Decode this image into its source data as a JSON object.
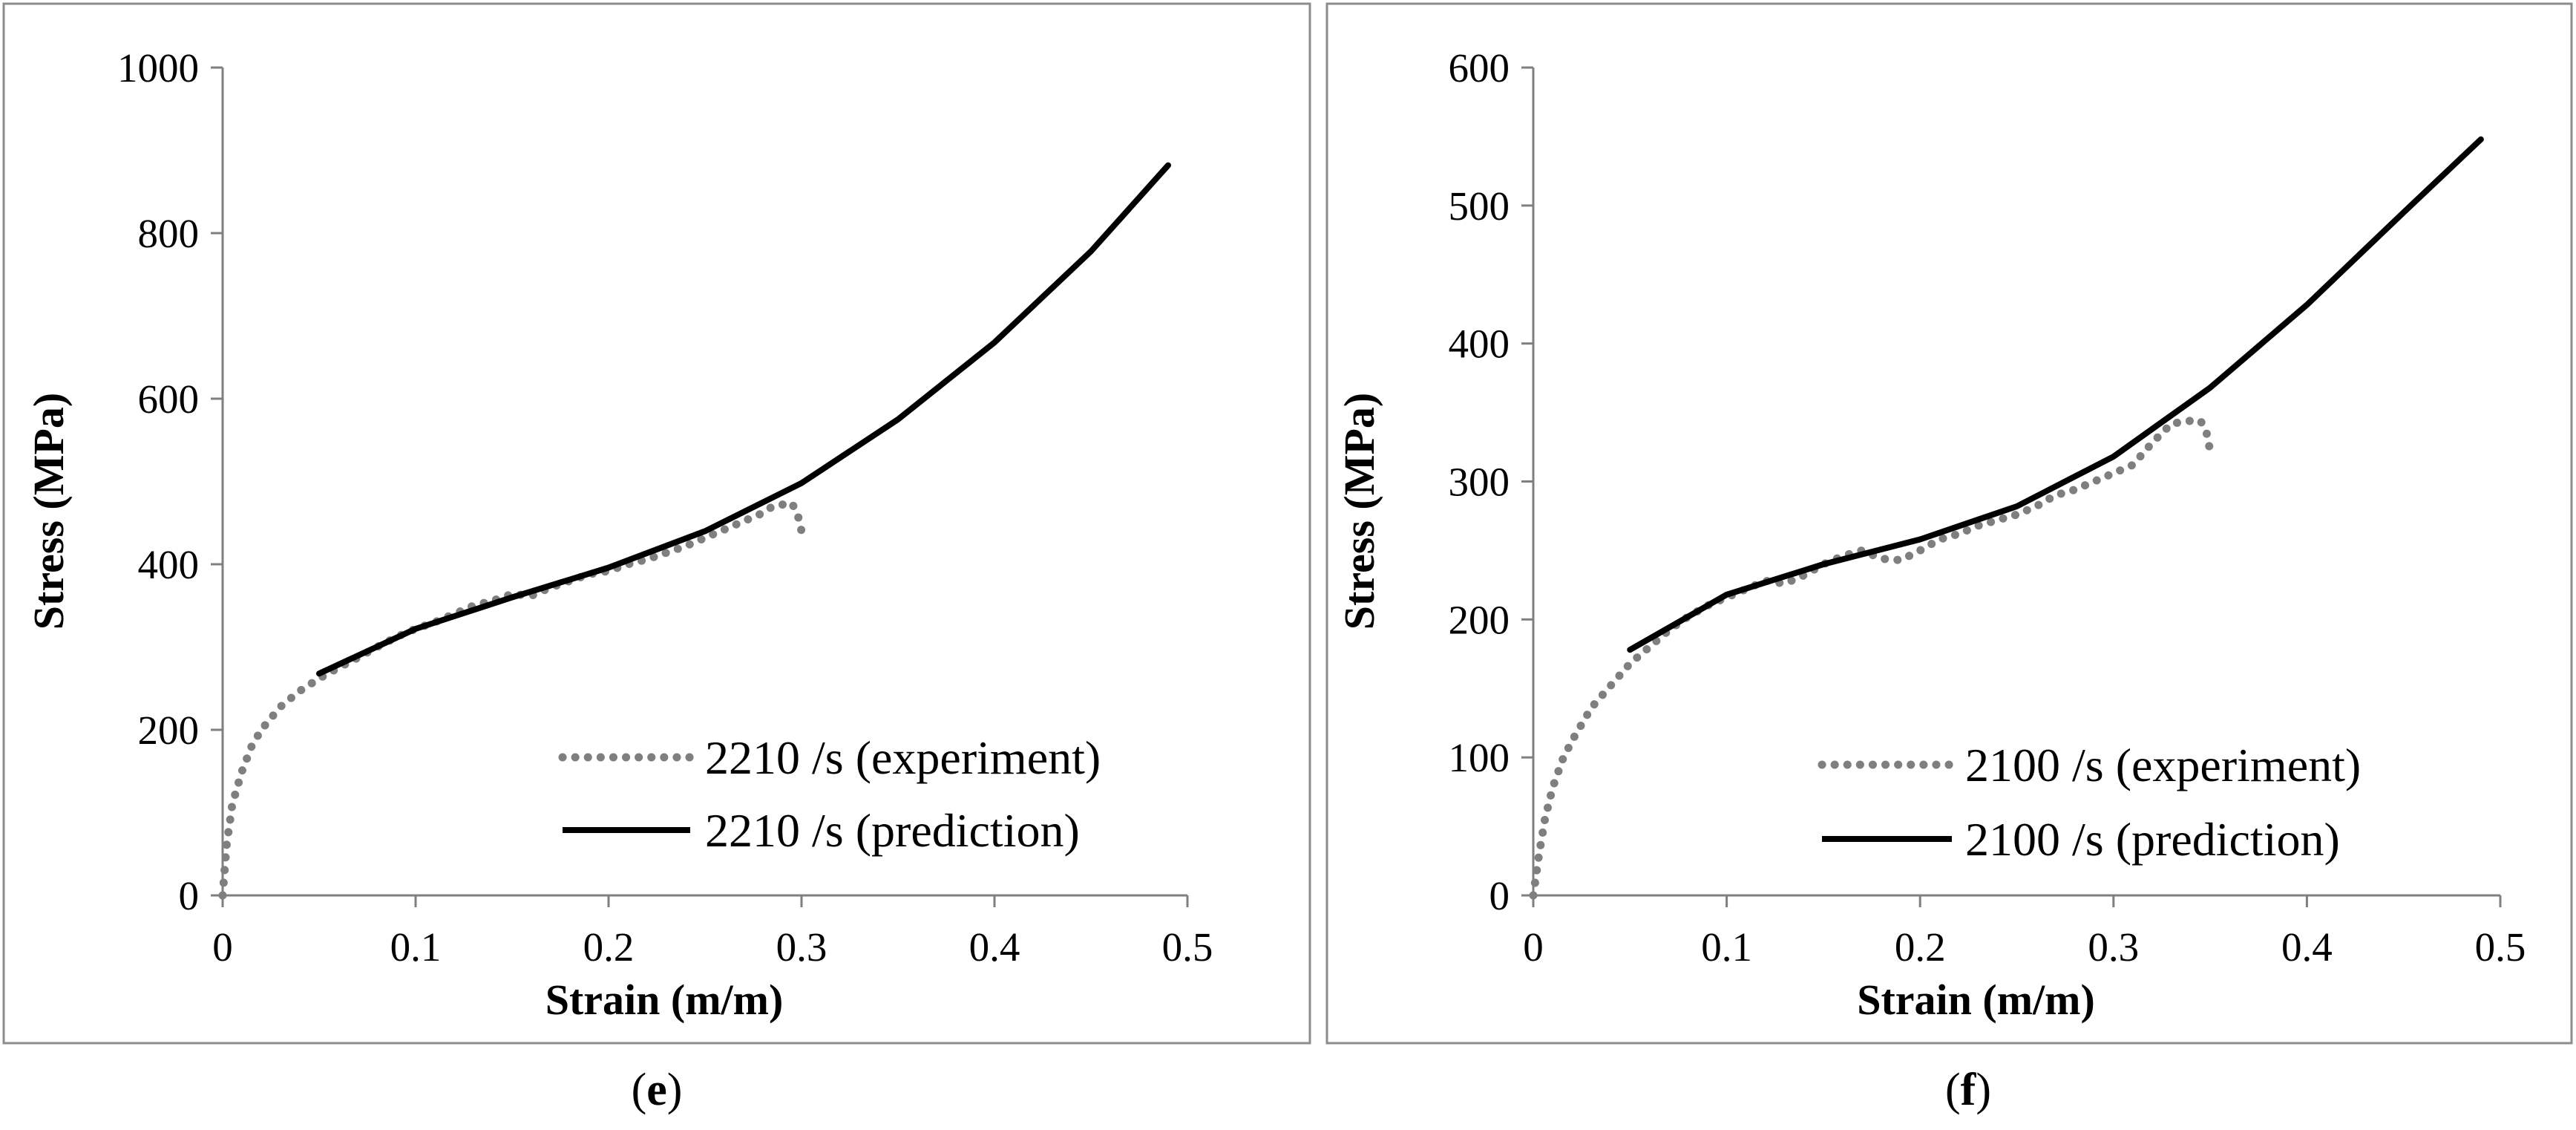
{
  "chart_data": [
    {
      "type": "line",
      "panel_label": "e",
      "xlabel": "Strain (m/m)",
      "ylabel": "Stress (MPa)",
      "xlim": [
        0,
        0.5
      ],
      "ylim": [
        0,
        1000
      ],
      "xticks": [
        "0",
        "0.1",
        "0.2",
        "0.3",
        "0.4",
        "0.5"
      ],
      "yticks": [
        "0",
        "200",
        "400",
        "600",
        "800",
        "1000"
      ],
      "grid": false,
      "legend_position": "bottom-right",
      "series": [
        {
          "name": "2210 /s (experiment)",
          "style": "dotted",
          "color": "#7f7f7f",
          "x": [
            0,
            0.002,
            0.005,
            0.01,
            0.015,
            0.02,
            0.03,
            0.04,
            0.05,
            0.06,
            0.07,
            0.08,
            0.09,
            0.1,
            0.11,
            0.12,
            0.13,
            0.14,
            0.15,
            0.16,
            0.17,
            0.18,
            0.19,
            0.2,
            0.21,
            0.22,
            0.23,
            0.24,
            0.25,
            0.26,
            0.27,
            0.28,
            0.285,
            0.29,
            0.295,
            0.298,
            0.3
          ],
          "y": [
            0,
            60,
            110,
            150,
            180,
            200,
            228,
            247,
            262,
            275,
            287,
            300,
            312,
            322,
            330,
            340,
            350,
            356,
            364,
            362,
            372,
            380,
            388,
            392,
            400,
            406,
            414,
            422,
            432,
            442,
            452,
            462,
            470,
            472,
            474,
            460,
            440
          ]
        },
        {
          "name": "2210 /s (prediction)",
          "style": "solid",
          "color": "#000000",
          "x": [
            0.05,
            0.1,
            0.15,
            0.2,
            0.25,
            0.3,
            0.35,
            0.4,
            0.45,
            0.49
          ],
          "y": [
            268,
            322,
            360,
            396,
            440,
            498,
            575,
            668,
            778,
            882
          ]
        }
      ]
    },
    {
      "type": "line",
      "panel_label": "f",
      "xlabel": "Strain (m/m)",
      "ylabel": "Stress (MPa)",
      "xlim": [
        0,
        0.5
      ],
      "ylim": [
        0,
        600
      ],
      "xticks": [
        "0",
        "0.1",
        "0.2",
        "0.3",
        "0.4",
        "0.5"
      ],
      "yticks": [
        "0",
        "100",
        "200",
        "300",
        "400",
        "500",
        "600"
      ],
      "grid": false,
      "legend_position": "bottom-right",
      "series": [
        {
          "name": "2100 /s (experiment)",
          "style": "dotted",
          "color": "#7f7f7f",
          "x": [
            0,
            0.003,
            0.006,
            0.01,
            0.015,
            0.02,
            0.03,
            0.04,
            0.05,
            0.06,
            0.07,
            0.08,
            0.09,
            0.1,
            0.11,
            0.12,
            0.13,
            0.14,
            0.15,
            0.16,
            0.17,
            0.18,
            0.19,
            0.2,
            0.21,
            0.22,
            0.23,
            0.24,
            0.25,
            0.26,
            0.27,
            0.28,
            0.29,
            0.3,
            0.31,
            0.32,
            0.33,
            0.34,
            0.345,
            0.348,
            0.35
          ],
          "y": [
            0,
            30,
            55,
            78,
            98,
            112,
            136,
            152,
            168,
            180,
            192,
            202,
            210,
            216,
            222,
            228,
            226,
            232,
            240,
            246,
            250,
            244,
            243,
            250,
            258,
            262,
            268,
            272,
            276,
            282,
            290,
            294,
            300,
            306,
            312,
            328,
            342,
            344,
            344,
            336,
            322
          ]
        },
        {
          "name": "2100 /s (prediction)",
          "style": "solid",
          "color": "#000000",
          "x": [
            0.05,
            0.1,
            0.15,
            0.2,
            0.25,
            0.3,
            0.35,
            0.4,
            0.45,
            0.49
          ],
          "y": [
            178,
            218,
            240,
            258,
            282,
            318,
            368,
            428,
            495,
            548
          ]
        }
      ]
    }
  ]
}
